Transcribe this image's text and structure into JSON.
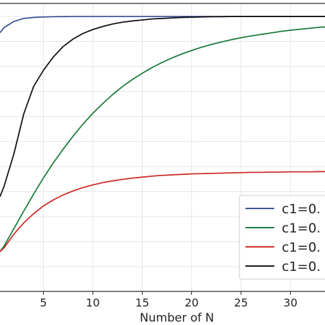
{
  "chart_data": {
    "type": "line",
    "xlabel": "Number of N",
    "ylabel": "",
    "title": "",
    "xlim": [
      0.6,
      33.5
    ],
    "ylim": [
      0,
      1
    ],
    "x_ticks": [
      5,
      10,
      15,
      20,
      25,
      30
    ],
    "grid": true,
    "legend_placement": "lower-right",
    "x": [
      0.6,
      1,
      2,
      3,
      4,
      5,
      6,
      7,
      8,
      9,
      10,
      11,
      12,
      13,
      14,
      15,
      16,
      17,
      18,
      19,
      20,
      21,
      22,
      23,
      24,
      25,
      26,
      27,
      28,
      29,
      30,
      31,
      32,
      33,
      33.5
    ],
    "series": [
      {
        "name": "c1=0.",
        "color": "#3b5496",
        "values": [
          0.935,
          0.955,
          0.98,
          0.992,
          0.996,
          0.998,
          0.999,
          0.9995,
          1,
          1,
          1,
          1,
          1,
          1,
          1,
          1,
          1,
          1,
          1,
          1,
          1,
          1,
          1,
          1,
          1,
          1,
          1,
          1,
          1,
          1,
          1,
          1,
          1,
          1,
          1
        ]
      },
      {
        "name": "c1=0.",
        "color": "#1a7a3a",
        "values": [
          0.06,
          0.082,
          0.152,
          0.222,
          0.29,
          0.355,
          0.415,
          0.47,
          0.522,
          0.57,
          0.613,
          0.652,
          0.688,
          0.72,
          0.748,
          0.773,
          0.796,
          0.816,
          0.834,
          0.85,
          0.864,
          0.877,
          0.888,
          0.898,
          0.907,
          0.915,
          0.922,
          0.928,
          0.934,
          0.94,
          0.945,
          0.949,
          0.953,
          0.957,
          0.958
        ]
      },
      {
        "name": "c1=0.",
        "color": "#cc2a24",
        "values": [
          0.06,
          0.075,
          0.13,
          0.175,
          0.212,
          0.243,
          0.267,
          0.287,
          0.303,
          0.316,
          0.327,
          0.336,
          0.343,
          0.349,
          0.354,
          0.358,
          0.362,
          0.365,
          0.367,
          0.369,
          0.371,
          0.372,
          0.373,
          0.374,
          0.375,
          0.376,
          0.377,
          0.377,
          0.378,
          0.378,
          0.379,
          0.379,
          0.379,
          0.38,
          0.38
        ]
      },
      {
        "name": "c1=0.",
        "color": "#111111",
        "values": [
          0.28,
          0.32,
          0.45,
          0.61,
          0.72,
          0.785,
          0.838,
          0.88,
          0.91,
          0.932,
          0.948,
          0.96,
          0.97,
          0.977,
          0.982,
          0.986,
          0.99,
          0.992,
          0.994,
          0.996,
          0.997,
          0.998,
          0.999,
          0.999,
          1,
          1,
          1,
          1,
          1,
          1,
          1,
          1,
          1,
          1,
          1
        ]
      }
    ]
  }
}
